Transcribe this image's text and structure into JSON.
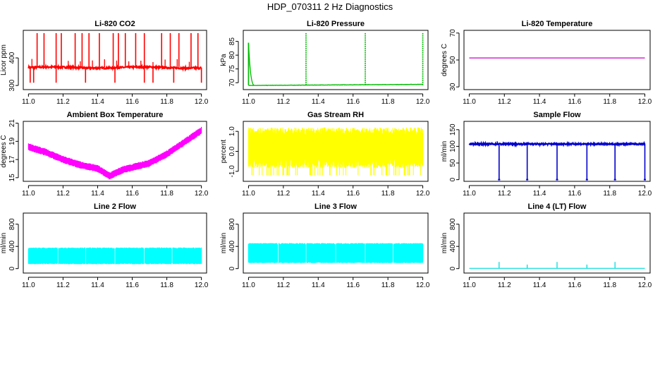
{
  "figure": {
    "title": "HDP_070311  2 Hz Diagnostics"
  },
  "chart_data": [
    {
      "type": "line",
      "title": "Li-820 CO2",
      "ylabel": "Licor ppm",
      "xlim": [
        10.97,
        12.03
      ],
      "ylim": [
        285,
        500
      ],
      "xticks": [
        "11.0",
        "11.2",
        "11.4",
        "11.6",
        "11.8",
        "12.0"
      ],
      "yticks": [
        {
          "v": 300,
          "label": "300"
        },
        {
          "v": 400,
          "label": "400"
        }
      ],
      "color": "#ff0000",
      "baseline": 365,
      "noise": 3,
      "spikes_up": [
        11.05,
        11.09,
        11.16,
        11.19,
        11.27,
        11.31,
        11.35,
        11.41,
        11.49,
        11.52,
        11.56,
        11.62,
        11.67,
        11.77,
        11.82,
        11.87,
        11.94,
        11.98
      ],
      "spike_up_to": 490,
      "spikes_down": [
        11.01,
        11.03,
        11.16,
        11.33,
        11.5,
        11.67,
        11.72,
        11.84,
        12.0
      ],
      "spike_down_to": 310
    },
    {
      "type": "line",
      "title": "Li-820 Pressure",
      "ylabel": "kPa",
      "xlim": [
        10.97,
        12.03
      ],
      "ylim": [
        67.5,
        89
      ],
      "xticks": [
        "11.0",
        "11.2",
        "11.4",
        "11.6",
        "11.8",
        "12.0"
      ],
      "yticks": [
        {
          "v": 70,
          "label": "70"
        },
        {
          "v": 75,
          "label": "75"
        },
        {
          "v": 80,
          "label": "80"
        },
        {
          "v": 85,
          "label": "85"
        }
      ],
      "color": "#00bb00",
      "baseline_start": 69.0,
      "baseline_end": 69.4,
      "noise": 0.1,
      "spikes_up": [
        11.0,
        11.33,
        11.67,
        12.0
      ],
      "spike_up_to": 88
    },
    {
      "type": "line",
      "title": "Li-820 Temperature",
      "ylabel": "degrees C",
      "xlim": [
        10.97,
        12.03
      ],
      "ylim": [
        28,
        72
      ],
      "xticks": [
        "11.0",
        "11.2",
        "11.4",
        "11.6",
        "11.8",
        "12.0"
      ],
      "yticks": [
        {
          "v": 30,
          "label": "30"
        },
        {
          "v": 50,
          "label": "50"
        },
        {
          "v": 70,
          "label": "70"
        }
      ],
      "color": "#cc00cc",
      "baseline": 51.5
    },
    {
      "type": "line",
      "title": "Ambient Box Temperature",
      "ylabel": "degrees C",
      "xlim": [
        10.97,
        12.03
      ],
      "ylim": [
        14.6,
        21.2
      ],
      "xticks": [
        "11.0",
        "11.2",
        "11.4",
        "11.6",
        "11.8",
        "12.0"
      ],
      "yticks": [
        {
          "v": 15,
          "label": "15"
        },
        {
          "v": 17,
          "label": "17"
        },
        {
          "v": 19,
          "label": "19"
        },
        {
          "v": 21,
          "label": "21"
        }
      ],
      "color": "#ff00ff",
      "trend": [
        [
          11.0,
          18.4
        ],
        [
          11.1,
          17.8
        ],
        [
          11.2,
          17.0
        ],
        [
          11.3,
          16.4
        ],
        [
          11.4,
          16.0
        ],
        [
          11.47,
          15.2
        ],
        [
          11.55,
          15.9
        ],
        [
          11.7,
          16.6
        ],
        [
          11.8,
          17.6
        ],
        [
          11.9,
          18.9
        ],
        [
          12.0,
          20.2
        ]
      ],
      "band": 0.8
    },
    {
      "type": "line",
      "title": "Gas Stream RH",
      "ylabel": "percent",
      "xlim": [
        10.97,
        12.03
      ],
      "ylim": [
        -1.5,
        1.5
      ],
      "xticks": [
        "11.0",
        "11.2",
        "11.4",
        "11.6",
        "11.8",
        "12.0"
      ],
      "yticks": [
        {
          "v": -1,
          "label": "-1.0"
        },
        {
          "v": 0,
          "label": "0.0"
        },
        {
          "v": 1,
          "label": "1.0"
        }
      ],
      "color": "#ffff00",
      "center": 0.25,
      "band": 0.9
    },
    {
      "type": "line",
      "title": "Sample Flow",
      "ylabel": "ml/min",
      "xlim": [
        10.97,
        12.03
      ],
      "ylim": [
        -5,
        175
      ],
      "xticks": [
        "11.0",
        "11.2",
        "11.4",
        "11.6",
        "11.8",
        "12.0"
      ],
      "yticks": [
        {
          "v": 0,
          "label": "0"
        },
        {
          "v": 50,
          "label": "50"
        },
        {
          "v": 100,
          "label": "100"
        },
        {
          "v": 150,
          "label": "150"
        }
      ],
      "color": "#0000cc",
      "baseline": 107,
      "noise": 2,
      "spikes_down": [
        11.17,
        11.33,
        11.5,
        11.67,
        11.83,
        12.0
      ],
      "spike_down_to": 0
    },
    {
      "type": "line",
      "title": "Line 2 Flow",
      "ylabel": "ml/min",
      "xlim": [
        10.97,
        12.03
      ],
      "ylim": [
        -80,
        1000
      ],
      "xticks": [
        "11.0",
        "11.2",
        "11.4",
        "11.6",
        "11.8",
        "12.0"
      ],
      "yticks": [
        {
          "v": 0,
          "label": "0"
        },
        {
          "v": 400,
          "label": "400"
        },
        {
          "v": 800,
          "label": "800"
        }
      ],
      "color": "#00ffff",
      "low": 80,
      "high": 380,
      "gaps": [
        11.17,
        11.33,
        11.5,
        11.67,
        11.83
      ]
    },
    {
      "type": "line",
      "title": "Line 3 Flow",
      "ylabel": "ml/min",
      "xlim": [
        10.97,
        12.03
      ],
      "ylim": [
        -80,
        1000
      ],
      "xticks": [
        "11.0",
        "11.2",
        "11.4",
        "11.6",
        "11.8",
        "12.0"
      ],
      "yticks": [
        {
          "v": 0,
          "label": "0"
        },
        {
          "v": 400,
          "label": "400"
        },
        {
          "v": 800,
          "label": "800"
        }
      ],
      "color": "#00ffff",
      "low": 100,
      "high": 460,
      "gaps": [
        11.17,
        11.33,
        11.5,
        11.67,
        11.83
      ]
    },
    {
      "type": "line",
      "title": "Line 4 (LT) Flow",
      "ylabel": "ml/min",
      "xlim": [
        10.97,
        12.03
      ],
      "ylim": [
        -80,
        1000
      ],
      "xticks": [
        "11.0",
        "11.2",
        "11.4",
        "11.6",
        "11.8",
        "12.0"
      ],
      "yticks": [
        {
          "v": 0,
          "label": "0"
        },
        {
          "v": 400,
          "label": "400"
        },
        {
          "v": 800,
          "label": "800"
        }
      ],
      "color": "#00dddd",
      "baseline": 5,
      "spikes_up": [
        11.17,
        11.33,
        11.5,
        11.67,
        11.83
      ],
      "spike_up_to": 120
    }
  ]
}
